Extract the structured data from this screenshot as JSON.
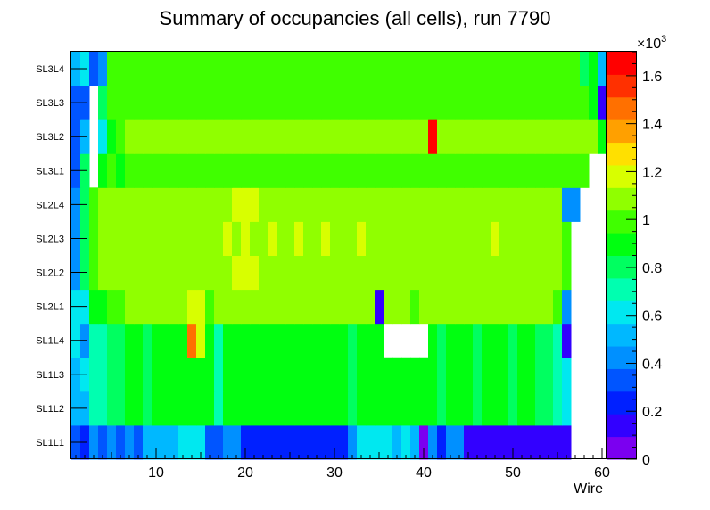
{
  "chart_data": {
    "type": "heatmap",
    "title": "Summary of occupancies (all cells),      run 7790",
    "xlabel": "Wire",
    "ylabel": "",
    "x_range": [
      0.5,
      60.5
    ],
    "x_ticks": [
      "10",
      "20",
      "30",
      "40",
      "50",
      "60"
    ],
    "y_labels": [
      "SL1L1",
      "SL1L2",
      "SL1L3",
      "SL1L4",
      "SL2L1",
      "SL2L2",
      "SL2L3",
      "SL2L4",
      "SL3L1",
      "SL3L2",
      "SL3L3",
      "SL3L4"
    ],
    "z_range": [
      0,
      1700
    ],
    "z_multiplier_label": "×10",
    "z_multiplier_exp": "3",
    "z_ticks": [
      "0",
      "0.2",
      "0.4",
      "0.6",
      "0.8",
      "1",
      "1.2",
      "1.4",
      "1.6"
    ],
    "palette": [
      "#7b00f0",
      "#3200ff",
      "#0020ff",
      "#0055ff",
      "#0090ff",
      "#00b8ff",
      "#00e8f0",
      "#00ffb0",
      "#00ff60",
      "#00ff10",
      "#40ff00",
      "#90ff00",
      "#d8ff00",
      "#ffe000",
      "#ffa000",
      "#ff7000",
      "#ff3000",
      "#ff0000"
    ],
    "rows": [
      [
        300,
        280,
        400,
        300,
        440,
        300,
        420,
        360,
        480,
        480,
        480,
        540,
        580,
        580,
        580,
        300,
        300,
        450,
        450,
        200,
        200,
        200,
        200,
        200,
        200,
        200,
        200,
        200,
        200,
        200,
        200,
        400,
        600,
        620,
        600,
        650,
        540,
        650,
        560,
        0,
        420,
        200,
        420,
        380,
        110,
        110,
        110,
        110,
        110,
        110,
        110,
        110,
        110,
        110,
        110,
        110,
        null,
        null,
        null,
        null
      ],
      [
        500,
        530,
        700,
        700,
        760,
        830,
        880,
        900,
        830,
        860,
        880,
        900,
        850,
        920,
        920,
        880,
        720,
        880,
        900,
        900,
        880,
        880,
        900,
        880,
        900,
        880,
        900,
        880,
        900,
        880,
        900,
        840,
        880,
        900,
        880,
        880,
        860,
        880,
        900,
        880,
        880,
        820,
        880,
        880,
        880,
        800,
        880,
        880,
        860,
        800,
        860,
        850,
        760,
        780,
        700,
        640,
        null,
        null,
        null,
        null
      ],
      [
        500,
        650,
        700,
        700,
        760,
        760,
        880,
        900,
        830,
        860,
        880,
        900,
        850,
        920,
        920,
        880,
        720,
        880,
        900,
        900,
        880,
        880,
        900,
        880,
        900,
        880,
        900,
        880,
        900,
        880,
        900,
        840,
        880,
        900,
        880,
        880,
        860,
        880,
        900,
        880,
        880,
        820,
        880,
        880,
        880,
        800,
        880,
        880,
        860,
        800,
        860,
        850,
        760,
        780,
        700,
        640,
        null,
        null,
        null,
        null
      ],
      [
        580,
        450,
        700,
        700,
        760,
        760,
        880,
        900,
        830,
        860,
        880,
        900,
        850,
        1450,
        1150,
        880,
        720,
        880,
        900,
        900,
        880,
        880,
        900,
        880,
        900,
        880,
        900,
        880,
        900,
        880,
        900,
        840,
        880,
        900,
        880,
        null,
        null,
        null,
        null,
        null,
        880,
        820,
        880,
        880,
        880,
        800,
        880,
        880,
        860,
        800,
        860,
        850,
        760,
        780,
        700,
        150,
        null,
        null,
        null,
        null
      ],
      [
        630,
        570,
        900,
        930,
        1020,
        1000,
        1050,
        1080,
        1100,
        1100,
        1130,
        1120,
        1100,
        1200,
        1150,
        1000,
        1100,
        1120,
        1100,
        1100,
        1100,
        1100,
        1100,
        1100,
        1100,
        1100,
        1100,
        1100,
        1130,
        1100,
        1100,
        1100,
        1100,
        1100,
        100,
        1100,
        1100,
        1120,
        1000,
        1050,
        1050,
        1100,
        1080,
        1080,
        1080,
        1080,
        1080,
        1050,
        1080,
        1050,
        1050,
        1080,
        1050,
        1050,
        950,
        400,
        null,
        null,
        null,
        null
      ],
      [
        400,
        800,
        1000,
        1050,
        1100,
        1100,
        1100,
        1100,
        1100,
        1100,
        1100,
        1100,
        1100,
        1100,
        1100,
        1100,
        1100,
        1100,
        1180,
        1180,
        1180,
        1100,
        1100,
        1100,
        1100,
        1100,
        1100,
        1100,
        1100,
        1100,
        1100,
        1100,
        1100,
        1100,
        1100,
        1100,
        1100,
        1100,
        1100,
        1100,
        1100,
        1100,
        1100,
        1100,
        1100,
        1100,
        1100,
        1100,
        1100,
        1100,
        1100,
        1100,
        1100,
        1100,
        1100,
        1000,
        null,
        null,
        null,
        null
      ],
      [
        400,
        800,
        1000,
        1050,
        1100,
        1100,
        1100,
        1100,
        1100,
        1100,
        1100,
        1100,
        1100,
        1100,
        1100,
        1100,
        1100,
        1180,
        1100,
        1180,
        1100,
        1100,
        1180,
        1100,
        1100,
        1180,
        1100,
        1100,
        1180,
        1100,
        1100,
        1100,
        1180,
        1100,
        1100,
        1100,
        1100,
        1100,
        1100,
        1100,
        1100,
        1100,
        1100,
        1100,
        1100,
        1100,
        1100,
        1180,
        1100,
        1100,
        1100,
        1100,
        1100,
        1100,
        1100,
        1000,
        null,
        null,
        null,
        null
      ],
      [
        400,
        800,
        1000,
        1050,
        1100,
        1100,
        1100,
        1100,
        1100,
        1100,
        1100,
        1100,
        1100,
        1100,
        1100,
        1100,
        1100,
        1100,
        1180,
        1180,
        1180,
        1100,
        1100,
        1100,
        1100,
        1100,
        1100,
        1100,
        1100,
        1100,
        1100,
        1100,
        1100,
        1100,
        1100,
        1100,
        1100,
        1100,
        1100,
        1100,
        1100,
        1100,
        1100,
        1100,
        1100,
        1100,
        1100,
        1100,
        1100,
        1100,
        1100,
        1100,
        1100,
        1100,
        1100,
        400,
        400,
        null,
        null,
        null
      ],
      [
        300,
        800,
        null,
        900,
        950,
        900,
        950,
        950,
        950,
        950,
        950,
        950,
        950,
        950,
        950,
        950,
        950,
        950,
        950,
        950,
        950,
        950,
        950,
        950,
        950,
        950,
        950,
        950,
        950,
        950,
        950,
        950,
        950,
        950,
        950,
        950,
        950,
        950,
        950,
        950,
        950,
        950,
        950,
        950,
        950,
        950,
        950,
        950,
        950,
        950,
        950,
        950,
        950,
        950,
        950,
        950,
        950,
        950,
        null,
        null
      ],
      [
        300,
        550,
        null,
        650,
        900,
        950,
        1050,
        1050,
        1050,
        1050,
        1050,
        1050,
        1050,
        1050,
        1050,
        1050,
        1050,
        1050,
        1050,
        1050,
        1050,
        1050,
        1050,
        1050,
        1050,
        1050,
        1050,
        1050,
        1050,
        1050,
        1050,
        1050,
        1050,
        1050,
        1050,
        1050,
        1050,
        1050,
        1050,
        1050,
        1650,
        1050,
        1050,
        1050,
        1050,
        1050,
        1050,
        1050,
        1050,
        1050,
        1050,
        1050,
        1050,
        1050,
        1050,
        1050,
        1050,
        1050,
        1050,
        850
      ],
      [
        300,
        350,
        null,
        800,
        950,
        950,
        950,
        950,
        950,
        950,
        950,
        950,
        950,
        950,
        950,
        950,
        950,
        950,
        950,
        950,
        950,
        950,
        950,
        950,
        950,
        950,
        950,
        950,
        950,
        950,
        950,
        950,
        950,
        950,
        950,
        950,
        950,
        950,
        950,
        950,
        950,
        950,
        950,
        950,
        950,
        950,
        950,
        950,
        950,
        950,
        950,
        950,
        950,
        950,
        950,
        950,
        950,
        950,
        900,
        150
      ],
      [
        500,
        650,
        300,
        400,
        950,
        950,
        950,
        950,
        950,
        950,
        950,
        950,
        950,
        950,
        950,
        950,
        950,
        950,
        950,
        950,
        950,
        950,
        950,
        950,
        950,
        950,
        950,
        950,
        950,
        950,
        950,
        950,
        950,
        950,
        950,
        950,
        950,
        950,
        950,
        950,
        950,
        950,
        950,
        950,
        950,
        950,
        950,
        950,
        950,
        950,
        950,
        950,
        950,
        950,
        950,
        950,
        950,
        800,
        850,
        500
      ]
    ]
  }
}
